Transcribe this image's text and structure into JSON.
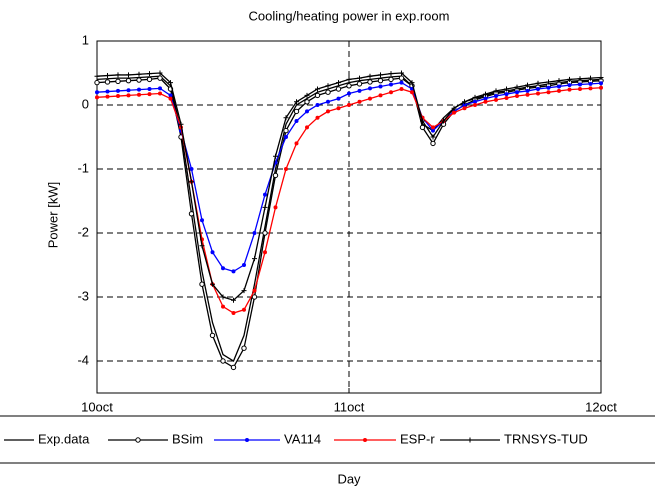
{
  "chart_data": {
    "type": "line",
    "title": "Cooling/heating power in exp.room",
    "y_label": "Power [kW]",
    "x_label": "Day",
    "x": [
      0,
      1,
      2,
      3,
      4,
      5,
      6,
      7,
      8,
      9,
      10,
      11,
      12,
      13,
      14,
      15,
      16,
      17,
      18,
      19,
      20,
      21,
      22,
      23,
      24,
      25,
      26,
      27,
      28,
      29,
      30,
      31,
      32,
      33,
      34,
      35,
      36,
      37,
      38,
      39,
      40,
      41,
      42,
      43,
      44,
      45,
      46,
      47,
      48
    ],
    "xlim": [
      0,
      48
    ],
    "xticks": [
      {
        "value": 0,
        "label": "10oct"
      },
      {
        "value": 24,
        "label": "11oct"
      },
      {
        "value": 48,
        "label": "12oct"
      }
    ],
    "ylim": [
      -4.5,
      1
    ],
    "yticks": [
      -4,
      -3,
      -2,
      -1,
      0,
      1
    ],
    "grid": true,
    "legend": "bottom",
    "series": [
      {
        "name": "Exp.data",
        "color": "#000000",
        "marker": "none",
        "values": [
          0.4,
          0.41,
          0.42,
          0.42,
          0.43,
          0.44,
          0.45,
          0.3,
          -0.4,
          -1.5,
          -2.6,
          -3.4,
          -3.9,
          -4.0,
          -3.6,
          -2.8,
          -1.9,
          -1.0,
          -0.3,
          0.0,
          0.1,
          0.2,
          0.25,
          0.3,
          0.35,
          0.38,
          0.4,
          0.42,
          0.44,
          0.45,
          0.3,
          -0.3,
          -0.4,
          -0.2,
          -0.05,
          0.05,
          0.1,
          0.15,
          0.2,
          0.22,
          0.25,
          0.28,
          0.3,
          0.33,
          0.35,
          0.37,
          0.38,
          0.39,
          0.4
        ]
      },
      {
        "name": "BSim",
        "color": "#000000",
        "marker": "circle",
        "values": [
          0.35,
          0.36,
          0.37,
          0.38,
          0.39,
          0.4,
          0.42,
          0.25,
          -0.5,
          -1.7,
          -2.8,
          -3.6,
          -4.0,
          -4.1,
          -3.8,
          -3.0,
          -2.0,
          -1.1,
          -0.4,
          -0.1,
          0.05,
          0.15,
          0.2,
          0.25,
          0.3,
          0.33,
          0.36,
          0.38,
          0.4,
          0.42,
          0.3,
          -0.35,
          -0.6,
          -0.3,
          -0.1,
          0.0,
          0.08,
          0.13,
          0.18,
          0.2,
          0.23,
          0.26,
          0.28,
          0.3,
          0.33,
          0.35,
          0.36,
          0.37,
          0.38
        ]
      },
      {
        "name": "VA114",
        "color": "#0000ff",
        "marker": "dot",
        "values": [
          0.2,
          0.21,
          0.22,
          0.23,
          0.24,
          0.25,
          0.26,
          0.15,
          -0.4,
          -1.0,
          -1.8,
          -2.3,
          -2.55,
          -2.6,
          -2.5,
          -2.0,
          -1.4,
          -0.9,
          -0.5,
          -0.25,
          -0.1,
          0.0,
          0.05,
          0.1,
          0.18,
          0.22,
          0.26,
          0.29,
          0.32,
          0.35,
          0.25,
          -0.2,
          -0.4,
          -0.25,
          -0.1,
          0.0,
          0.05,
          0.1,
          0.14,
          0.17,
          0.2,
          0.22,
          0.25,
          0.27,
          0.29,
          0.31,
          0.32,
          0.33,
          0.34
        ]
      },
      {
        "name": "ESP-r",
        "color": "#ff0000",
        "marker": "dot",
        "values": [
          0.12,
          0.13,
          0.14,
          0.15,
          0.16,
          0.17,
          0.18,
          0.1,
          -0.35,
          -1.2,
          -2.1,
          -2.8,
          -3.15,
          -3.25,
          -3.2,
          -2.9,
          -2.3,
          -1.6,
          -1.0,
          -0.6,
          -0.35,
          -0.2,
          -0.1,
          -0.05,
          0.0,
          0.05,
          0.1,
          0.15,
          0.2,
          0.25,
          0.2,
          -0.2,
          -0.35,
          -0.25,
          -0.12,
          -0.05,
          0.0,
          0.05,
          0.08,
          0.11,
          0.14,
          0.16,
          0.18,
          0.2,
          0.22,
          0.24,
          0.25,
          0.26,
          0.27
        ]
      },
      {
        "name": "TRNSYS-TUD",
        "color": "#000000",
        "marker": "plus",
        "values": [
          0.45,
          0.46,
          0.47,
          0.47,
          0.48,
          0.49,
          0.5,
          0.35,
          -0.3,
          -1.2,
          -2.2,
          -2.8,
          -3.0,
          -3.05,
          -2.9,
          -2.4,
          -1.6,
          -0.8,
          -0.2,
          0.05,
          0.15,
          0.25,
          0.3,
          0.35,
          0.4,
          0.42,
          0.45,
          0.47,
          0.49,
          0.5,
          0.35,
          -0.25,
          -0.5,
          -0.25,
          -0.05,
          0.05,
          0.12,
          0.17,
          0.22,
          0.25,
          0.28,
          0.31,
          0.34,
          0.36,
          0.38,
          0.4,
          0.41,
          0.42,
          0.43
        ]
      }
    ]
  }
}
